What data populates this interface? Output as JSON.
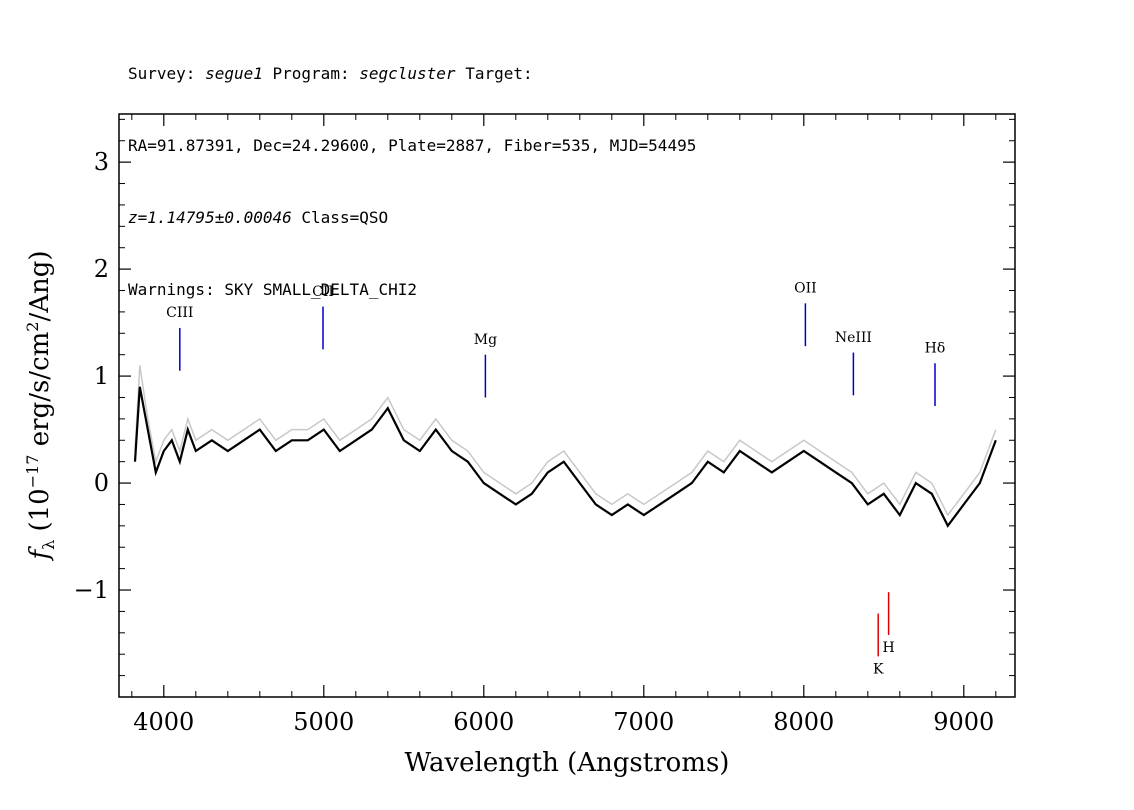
{
  "header": {
    "survey_label": "Survey:",
    "survey": "segue1",
    "program_label": "Program:",
    "program": "segcluster",
    "target_label": "Target:",
    "line2": "RA=91.87391, Dec=24.29600, Plate=2887, Fiber=535, MJD=54495",
    "redshift": "z=1.14795±0.00046",
    "class": "Class=QSO",
    "warnings": "Warnings: SKY SMALL_DELTA_CHI2"
  },
  "colors": {
    "raw_spectrum": "#c8c8c8",
    "smoothed_spectrum": "#000000",
    "emission_marker": "#0000cc",
    "absorption_marker": "#dd0000"
  },
  "chart_data": {
    "type": "line",
    "xlabel": "Wavelength (Angstroms)",
    "ylabel": "f_λ (10^-17 erg/s/cm^2/Ang)",
    "xlim": [
      3720,
      9320
    ],
    "ylim": [
      -2.0,
      3.45
    ],
    "x_ticks": [
      4000,
      5000,
      6000,
      7000,
      8000,
      9000
    ],
    "y_ticks": [
      -1,
      0,
      1,
      2,
      3
    ],
    "grid": false,
    "series": [
      {
        "style": "raw (gray, noisy)",
        "x": [
          3820,
          3850,
          3900,
          3950,
          4000,
          4050,
          4100,
          4150,
          4200,
          4300,
          4400,
          4500,
          4600,
          4700,
          4800,
          4900,
          5000,
          5100,
          5200,
          5300,
          5400,
          5500,
          5600,
          5700,
          5800,
          5900,
          6000,
          6100,
          6200,
          6300,
          6400,
          6500,
          6600,
          6700,
          6800,
          6900,
          7000,
          7100,
          7200,
          7300,
          7400,
          7500,
          7600,
          7700,
          7800,
          7900,
          8000,
          8100,
          8200,
          8300,
          8400,
          8500,
          8600,
          8700,
          8800,
          8900,
          9000,
          9100,
          9200
        ],
        "y": [
          0.3,
          1.1,
          0.6,
          0.2,
          0.4,
          0.5,
          0.3,
          0.6,
          0.4,
          0.5,
          0.4,
          0.5,
          0.6,
          0.4,
          0.5,
          0.5,
          0.6,
          0.4,
          0.5,
          0.6,
          0.8,
          0.5,
          0.4,
          0.6,
          0.4,
          0.3,
          0.1,
          0.0,
          -0.1,
          0.0,
          0.2,
          0.3,
          0.1,
          -0.1,
          -0.2,
          -0.1,
          -0.2,
          -0.1,
          0.0,
          0.1,
          0.3,
          0.2,
          0.4,
          0.3,
          0.2,
          0.3,
          0.4,
          0.3,
          0.2,
          0.1,
          -0.1,
          0.0,
          -0.2,
          0.1,
          0.0,
          -0.3,
          -0.1,
          0.1,
          0.5
        ]
      },
      {
        "style": "smoothed (black)",
        "x": [
          3820,
          3850,
          3900,
          3950,
          4000,
          4050,
          4100,
          4150,
          4200,
          4300,
          4400,
          4500,
          4600,
          4700,
          4800,
          4900,
          5000,
          5100,
          5200,
          5300,
          5400,
          5500,
          5600,
          5700,
          5800,
          5900,
          6000,
          6100,
          6200,
          6300,
          6400,
          6500,
          6600,
          6700,
          6800,
          6900,
          7000,
          7100,
          7200,
          7300,
          7400,
          7500,
          7600,
          7700,
          7800,
          7900,
          8000,
          8100,
          8200,
          8300,
          8400,
          8500,
          8600,
          8700,
          8800,
          8900,
          9000,
          9100,
          9200
        ],
        "y": [
          0.2,
          0.9,
          0.5,
          0.1,
          0.3,
          0.4,
          0.2,
          0.5,
          0.3,
          0.4,
          0.3,
          0.4,
          0.5,
          0.3,
          0.4,
          0.4,
          0.5,
          0.3,
          0.4,
          0.5,
          0.7,
          0.4,
          0.3,
          0.5,
          0.3,
          0.2,
          0.0,
          -0.1,
          -0.2,
          -0.1,
          0.1,
          0.2,
          0.0,
          -0.2,
          -0.3,
          -0.2,
          -0.3,
          -0.2,
          -0.1,
          0.0,
          0.2,
          0.1,
          0.3,
          0.2,
          0.1,
          0.2,
          0.3,
          0.2,
          0.1,
          0.0,
          -0.2,
          -0.1,
          -0.3,
          0.0,
          -0.1,
          -0.4,
          -0.2,
          0.0,
          0.4
        ]
      }
    ],
    "annotations": [
      {
        "label": "CIII",
        "x": 4100,
        "y_top": 1.45,
        "y_bottom": 1.05,
        "label_y": 1.55,
        "type": "emission"
      },
      {
        "label": "CII",
        "x": 4995,
        "y_top": 1.65,
        "y_bottom": 1.25,
        "label_y": 1.75,
        "type": "emission"
      },
      {
        "label": "Mg",
        "x": 6010,
        "y_top": 1.2,
        "y_bottom": 0.8,
        "label_y": 1.3,
        "type": "emission"
      },
      {
        "label": "OII",
        "x": 8010,
        "y_top": 1.68,
        "y_bottom": 1.28,
        "label_y": 1.78,
        "type": "emission"
      },
      {
        "label": "NeIII",
        "x": 8310,
        "y_top": 1.22,
        "y_bottom": 0.82,
        "label_y": 1.32,
        "type": "emission"
      },
      {
        "label": "Hδ",
        "x": 8820,
        "y_top": 1.12,
        "y_bottom": 0.72,
        "label_y": 1.22,
        "type": "emission"
      },
      {
        "label": "K",
        "x": 8465,
        "y_top": -1.22,
        "y_bottom": -1.62,
        "label_y": -1.78,
        "type": "absorption"
      },
      {
        "label": "H",
        "x": 8530,
        "y_top": -1.02,
        "y_bottom": -1.42,
        "label_y": -1.58,
        "type": "absorption"
      }
    ]
  }
}
